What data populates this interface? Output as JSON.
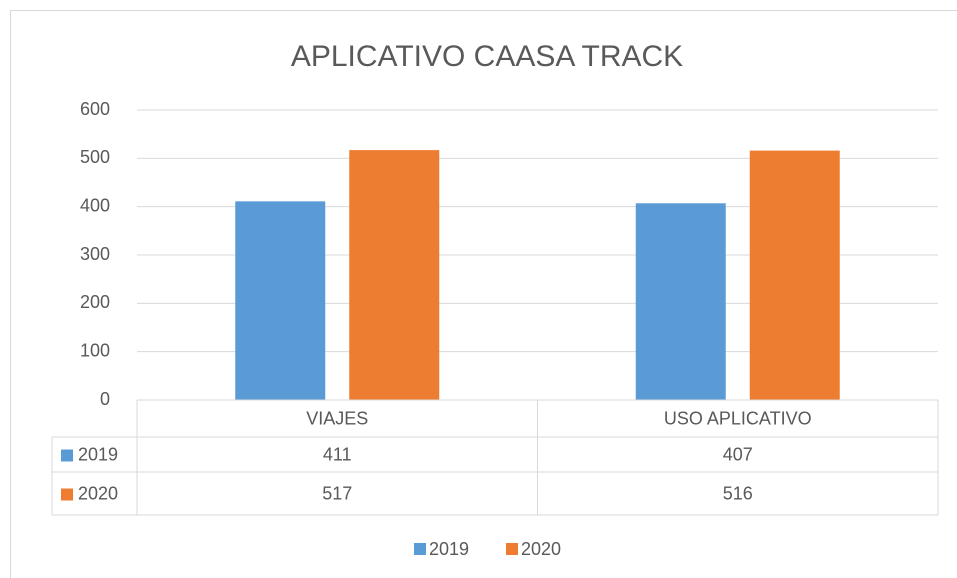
{
  "chart_data": {
    "type": "bar",
    "title": "APLICATIVO CAASA TRACK",
    "categories": [
      "VIAJES",
      "USO APLICATIVO"
    ],
    "series": [
      {
        "name": "2019",
        "color": "#5b9bd5",
        "values": [
          411,
          407
        ]
      },
      {
        "name": "2020",
        "color": "#ed7d31",
        "values": [
          517,
          516
        ]
      }
    ],
    "ylim": [
      0,
      600
    ],
    "yticks": [
      0,
      100,
      200,
      300,
      400,
      500,
      600
    ],
    "grid": true,
    "data_table": true,
    "legend": "bottom"
  }
}
